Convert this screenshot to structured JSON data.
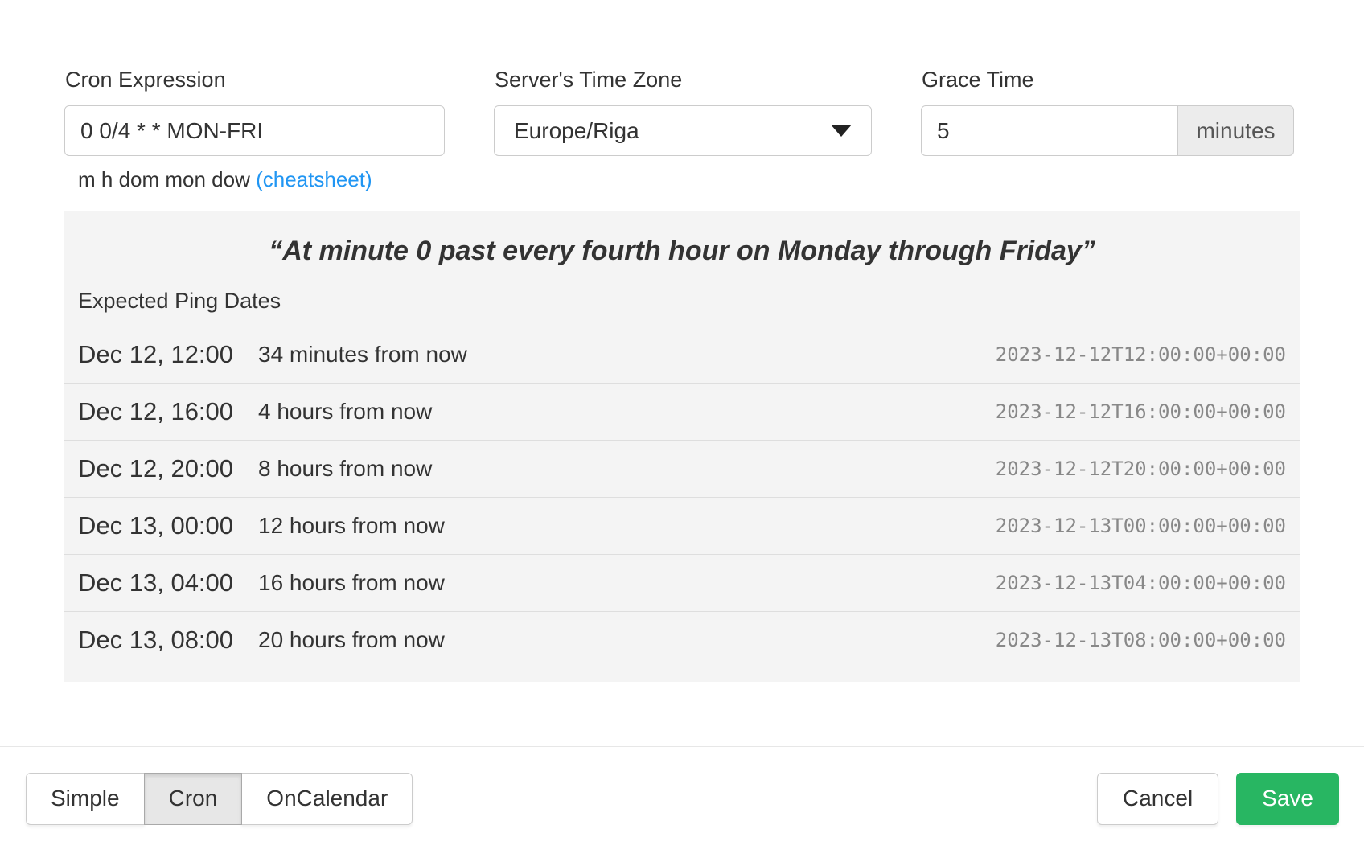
{
  "form": {
    "cron": {
      "label": "Cron Expression",
      "value": "0 0/4 * * MON-FRI",
      "helper_prefix": "m h dom mon dow ",
      "helper_link": "(cheatsheet)"
    },
    "timezone": {
      "label": "Server's Time Zone",
      "value": "Europe/Riga"
    },
    "grace": {
      "label": "Grace Time",
      "value": "5",
      "unit": "minutes"
    }
  },
  "preview": {
    "description": "“At minute 0 past every fourth hour on Monday through Friday”",
    "subtitle": "Expected Ping Dates",
    "rows": [
      {
        "date": "Dec 12, 12:00",
        "relative": "34 minutes from now",
        "iso": "2023-12-12T12:00:00+00:00"
      },
      {
        "date": "Dec 12, 16:00",
        "relative": "4 hours from now",
        "iso": "2023-12-12T16:00:00+00:00"
      },
      {
        "date": "Dec 12, 20:00",
        "relative": "8 hours from now",
        "iso": "2023-12-12T20:00:00+00:00"
      },
      {
        "date": "Dec 13, 00:00",
        "relative": "12 hours from now",
        "iso": "2023-12-13T00:00:00+00:00"
      },
      {
        "date": "Dec 13, 04:00",
        "relative": "16 hours from now",
        "iso": "2023-12-13T04:00:00+00:00"
      },
      {
        "date": "Dec 13, 08:00",
        "relative": "20 hours from now",
        "iso": "2023-12-13T08:00:00+00:00"
      }
    ]
  },
  "footer": {
    "mode_tabs": [
      {
        "label": "Simple",
        "active": false
      },
      {
        "label": "Cron",
        "active": true
      },
      {
        "label": "OnCalendar",
        "active": false
      }
    ],
    "cancel_label": "Cancel",
    "save_label": "Save"
  },
  "colors": {
    "accent_green": "#28b662",
    "link_blue": "#2196f3"
  }
}
